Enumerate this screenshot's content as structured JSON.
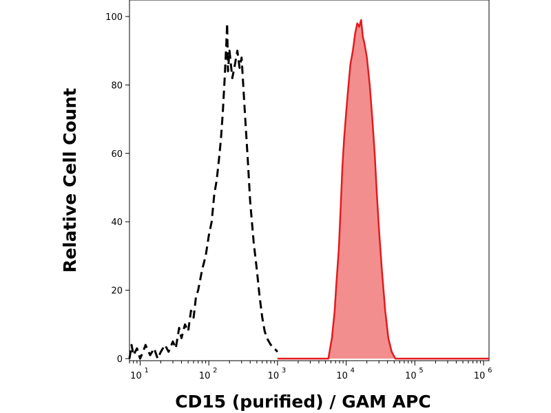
{
  "chart_data": {
    "type": "area",
    "title": "",
    "xlabel": "CD15 (purified) / GAM APC",
    "ylabel": "Relative Cell Count",
    "x_scale": "log",
    "xlim": [
      7,
      1200000
    ],
    "ylim": [
      0,
      100
    ],
    "x_ticks": [
      {
        "value": 10,
        "base": "10",
        "exp": "1"
      },
      {
        "value": 100,
        "base": "10",
        "exp": "2"
      },
      {
        "value": 1000,
        "base": "10",
        "exp": "3"
      },
      {
        "value": 10000,
        "base": "10",
        "exp": "4"
      },
      {
        "value": 100000,
        "base": "10",
        "exp": "5"
      },
      {
        "value": 1000000,
        "base": "10",
        "exp": "6"
      }
    ],
    "y_ticks": [
      0,
      20,
      40,
      60,
      80,
      100
    ],
    "grid": false,
    "series": [
      {
        "style": "dashed-outline",
        "color": "#000000",
        "points": [
          [
            7,
            0
          ],
          [
            7.5,
            4
          ],
          [
            8,
            1
          ],
          [
            9,
            3
          ],
          [
            10,
            0
          ],
          [
            11,
            2
          ],
          [
            12,
            4
          ],
          [
            14,
            1
          ],
          [
            16,
            3
          ],
          [
            18,
            0
          ],
          [
            20,
            2
          ],
          [
            23,
            4
          ],
          [
            26,
            2
          ],
          [
            30,
            5
          ],
          [
            33,
            3
          ],
          [
            37,
            9
          ],
          [
            40,
            6
          ],
          [
            45,
            10
          ],
          [
            50,
            8
          ],
          [
            55,
            14
          ],
          [
            60,
            12
          ],
          [
            65,
            18
          ],
          [
            70,
            20
          ],
          [
            80,
            26
          ],
          [
            90,
            30
          ],
          [
            100,
            36
          ],
          [
            110,
            40
          ],
          [
            120,
            48
          ],
          [
            130,
            52
          ],
          [
            140,
            58
          ],
          [
            150,
            64
          ],
          [
            160,
            72
          ],
          [
            170,
            82
          ],
          [
            180,
            92
          ],
          [
            185,
            98
          ],
          [
            190,
            84
          ],
          [
            200,
            90
          ],
          [
            220,
            82
          ],
          [
            240,
            86
          ],
          [
            260,
            90
          ],
          [
            280,
            85
          ],
          [
            300,
            88
          ],
          [
            330,
            74
          ],
          [
            370,
            58
          ],
          [
            400,
            46
          ],
          [
            450,
            34
          ],
          [
            500,
            26
          ],
          [
            550,
            18
          ],
          [
            600,
            12
          ],
          [
            650,
            8
          ],
          [
            700,
            6
          ],
          [
            800,
            4
          ],
          [
            900,
            3
          ],
          [
            1000,
            2
          ]
        ]
      },
      {
        "style": "filled",
        "color": "#e31a1c",
        "fill": "#f28e8e",
        "points": [
          [
            1000,
            0
          ],
          [
            5500,
            0
          ],
          [
            6200,
            6
          ],
          [
            6800,
            14
          ],
          [
            7200,
            22
          ],
          [
            7800,
            32
          ],
          [
            8300,
            44
          ],
          [
            8800,
            56
          ],
          [
            9300,
            64
          ],
          [
            10000,
            72
          ],
          [
            10800,
            80
          ],
          [
            11500,
            86
          ],
          [
            12500,
            90
          ],
          [
            13500,
            95
          ],
          [
            14500,
            98
          ],
          [
            15500,
            97
          ],
          [
            16500,
            99
          ],
          [
            17500,
            94
          ],
          [
            18500,
            92
          ],
          [
            20000,
            88
          ],
          [
            22000,
            80
          ],
          [
            24000,
            70
          ],
          [
            26000,
            60
          ],
          [
            28000,
            48
          ],
          [
            30000,
            38
          ],
          [
            33000,
            26
          ],
          [
            37000,
            14
          ],
          [
            41000,
            6
          ],
          [
            46000,
            2
          ],
          [
            52000,
            0
          ],
          [
            1200000,
            0
          ]
        ]
      }
    ]
  }
}
